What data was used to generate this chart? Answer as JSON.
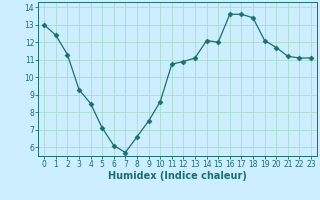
{
  "x": [
    0,
    1,
    2,
    3,
    4,
    5,
    6,
    7,
    8,
    9,
    10,
    11,
    12,
    13,
    14,
    15,
    16,
    17,
    18,
    19,
    20,
    21,
    22,
    23
  ],
  "y": [
    13.0,
    12.4,
    11.3,
    9.3,
    8.5,
    7.1,
    6.1,
    5.7,
    6.6,
    7.5,
    8.6,
    10.75,
    10.9,
    11.1,
    12.1,
    12.0,
    13.6,
    13.6,
    13.4,
    12.1,
    11.7,
    11.2,
    11.1,
    11.1
  ],
  "line_color": "#1a7070",
  "marker": "D",
  "marker_size": 2.5,
  "bg_color": "#cceeff",
  "grid_color": "#aaddcc",
  "xlabel": "Humidex (Indice chaleur)",
  "xlim": [
    -0.5,
    23.5
  ],
  "ylim": [
    5.5,
    14.3
  ],
  "yticks": [
    6,
    7,
    8,
    9,
    10,
    11,
    12,
    13,
    14
  ],
  "xticks": [
    0,
    1,
    2,
    3,
    4,
    5,
    6,
    7,
    8,
    9,
    10,
    11,
    12,
    13,
    14,
    15,
    16,
    17,
    18,
    19,
    20,
    21,
    22,
    23
  ],
  "tick_color": "#1a7070",
  "label_color": "#1a7070",
  "xlabel_fontsize": 7,
  "tick_fontsize": 5.5
}
